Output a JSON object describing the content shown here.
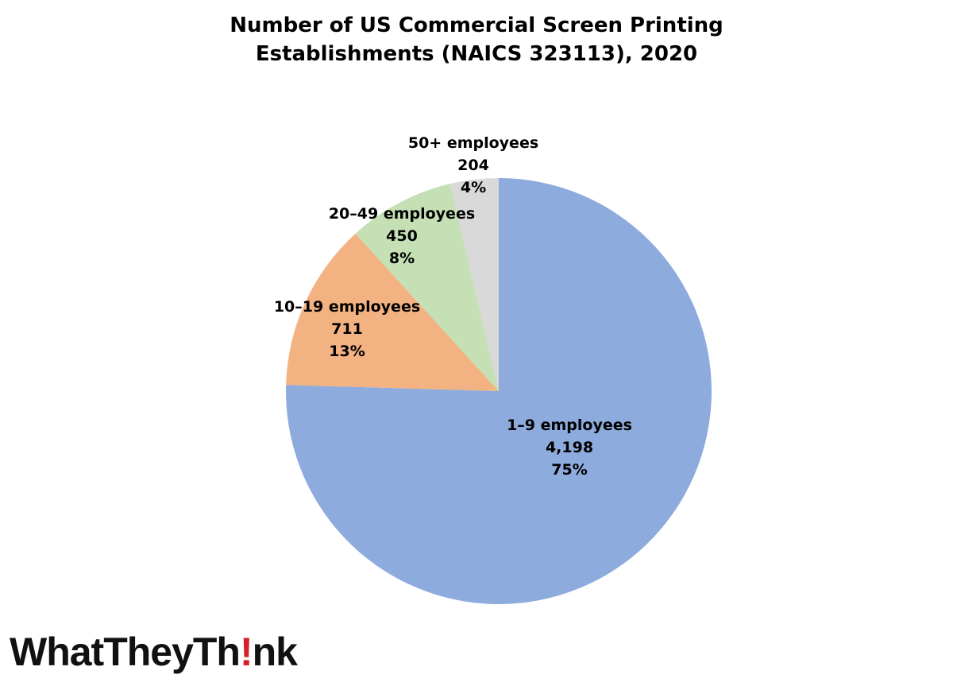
{
  "chart_data": {
    "type": "pie",
    "title": [
      "Number of US Commercial Screen Printing",
      "Establishments (NAICS 323113), 2020"
    ],
    "slices": [
      {
        "label": "1–9 employees",
        "value_label": "4,198",
        "pct_label": "75%",
        "value": 4198,
        "color": "#8eabdd"
      },
      {
        "label": "10–19 employees",
        "value_label": "711",
        "pct_label": "13%",
        "value": 711,
        "color": "#f3b282"
      },
      {
        "label": "20–49 employees",
        "value_label": "450",
        "pct_label": "8%",
        "value": 450,
        "color": "#c5e0b4"
      },
      {
        "label": "50+ employees",
        "value_label": "204",
        "pct_label": "4%",
        "value": 204,
        "color": "#d9d9d9"
      }
    ],
    "legend": "none"
  },
  "logo": {
    "before": "WhatTheyTh",
    "mark": "!",
    "after": "nk"
  }
}
